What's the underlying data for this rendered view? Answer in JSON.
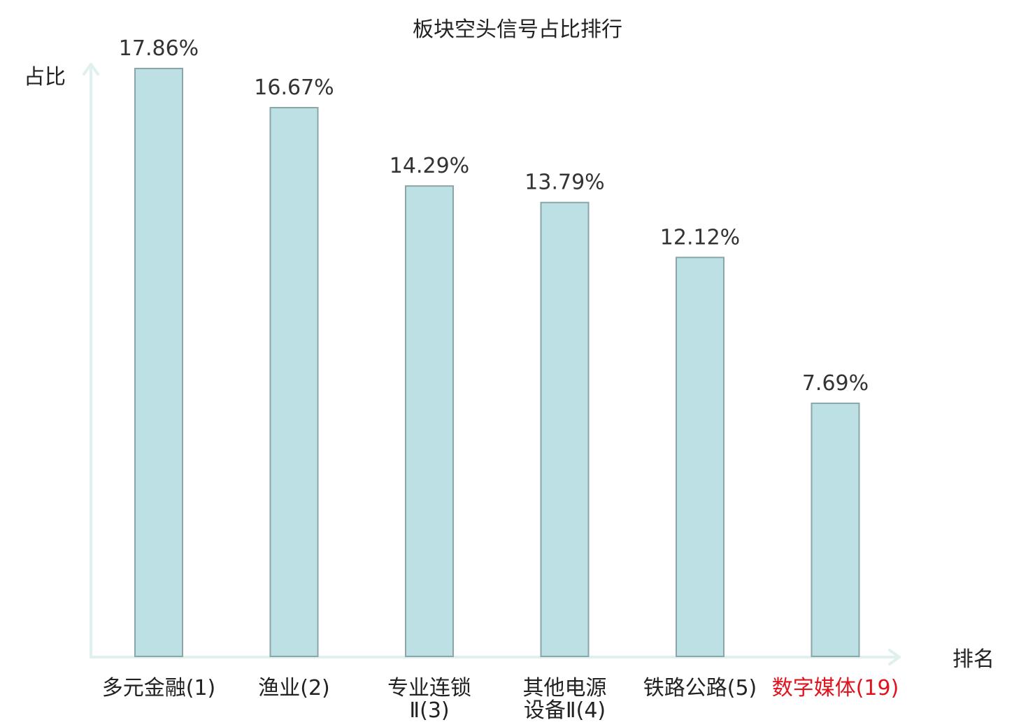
{
  "chart_data": {
    "type": "bar",
    "title": "板块空头信号占比排行",
    "ylabel": "占比",
    "xlabel": "排名",
    "ylim": [
      0,
      17.86
    ],
    "categories": [
      {
        "lines": [
          "多元金融(1)"
        ],
        "highlight": false
      },
      {
        "lines": [
          "渔业(2)"
        ],
        "highlight": false
      },
      {
        "lines": [
          "专业连锁",
          "Ⅱ(3)"
        ],
        "highlight": false
      },
      {
        "lines": [
          "其他电源",
          "设备Ⅱ(4)"
        ],
        "highlight": false
      },
      {
        "lines": [
          "铁路公路(5)"
        ],
        "highlight": false
      },
      {
        "lines": [
          "数字媒体(19)"
        ],
        "highlight": true
      }
    ],
    "values": [
      17.86,
      16.67,
      14.29,
      13.79,
      12.12,
      7.69
    ],
    "value_labels": [
      "17.86%",
      "16.67%",
      "14.29%",
      "13.79%",
      "12.12%",
      "7.69%"
    ],
    "grid": false,
    "legend": "none",
    "colors": {
      "bar_fill": "#bce0e3",
      "bar_stroke": "#8aa6a8",
      "axis": "#dff0ee",
      "text": "#222222",
      "value_text": "#333333",
      "label_text": "#222222",
      "highlight_text": "#e0141e"
    }
  }
}
